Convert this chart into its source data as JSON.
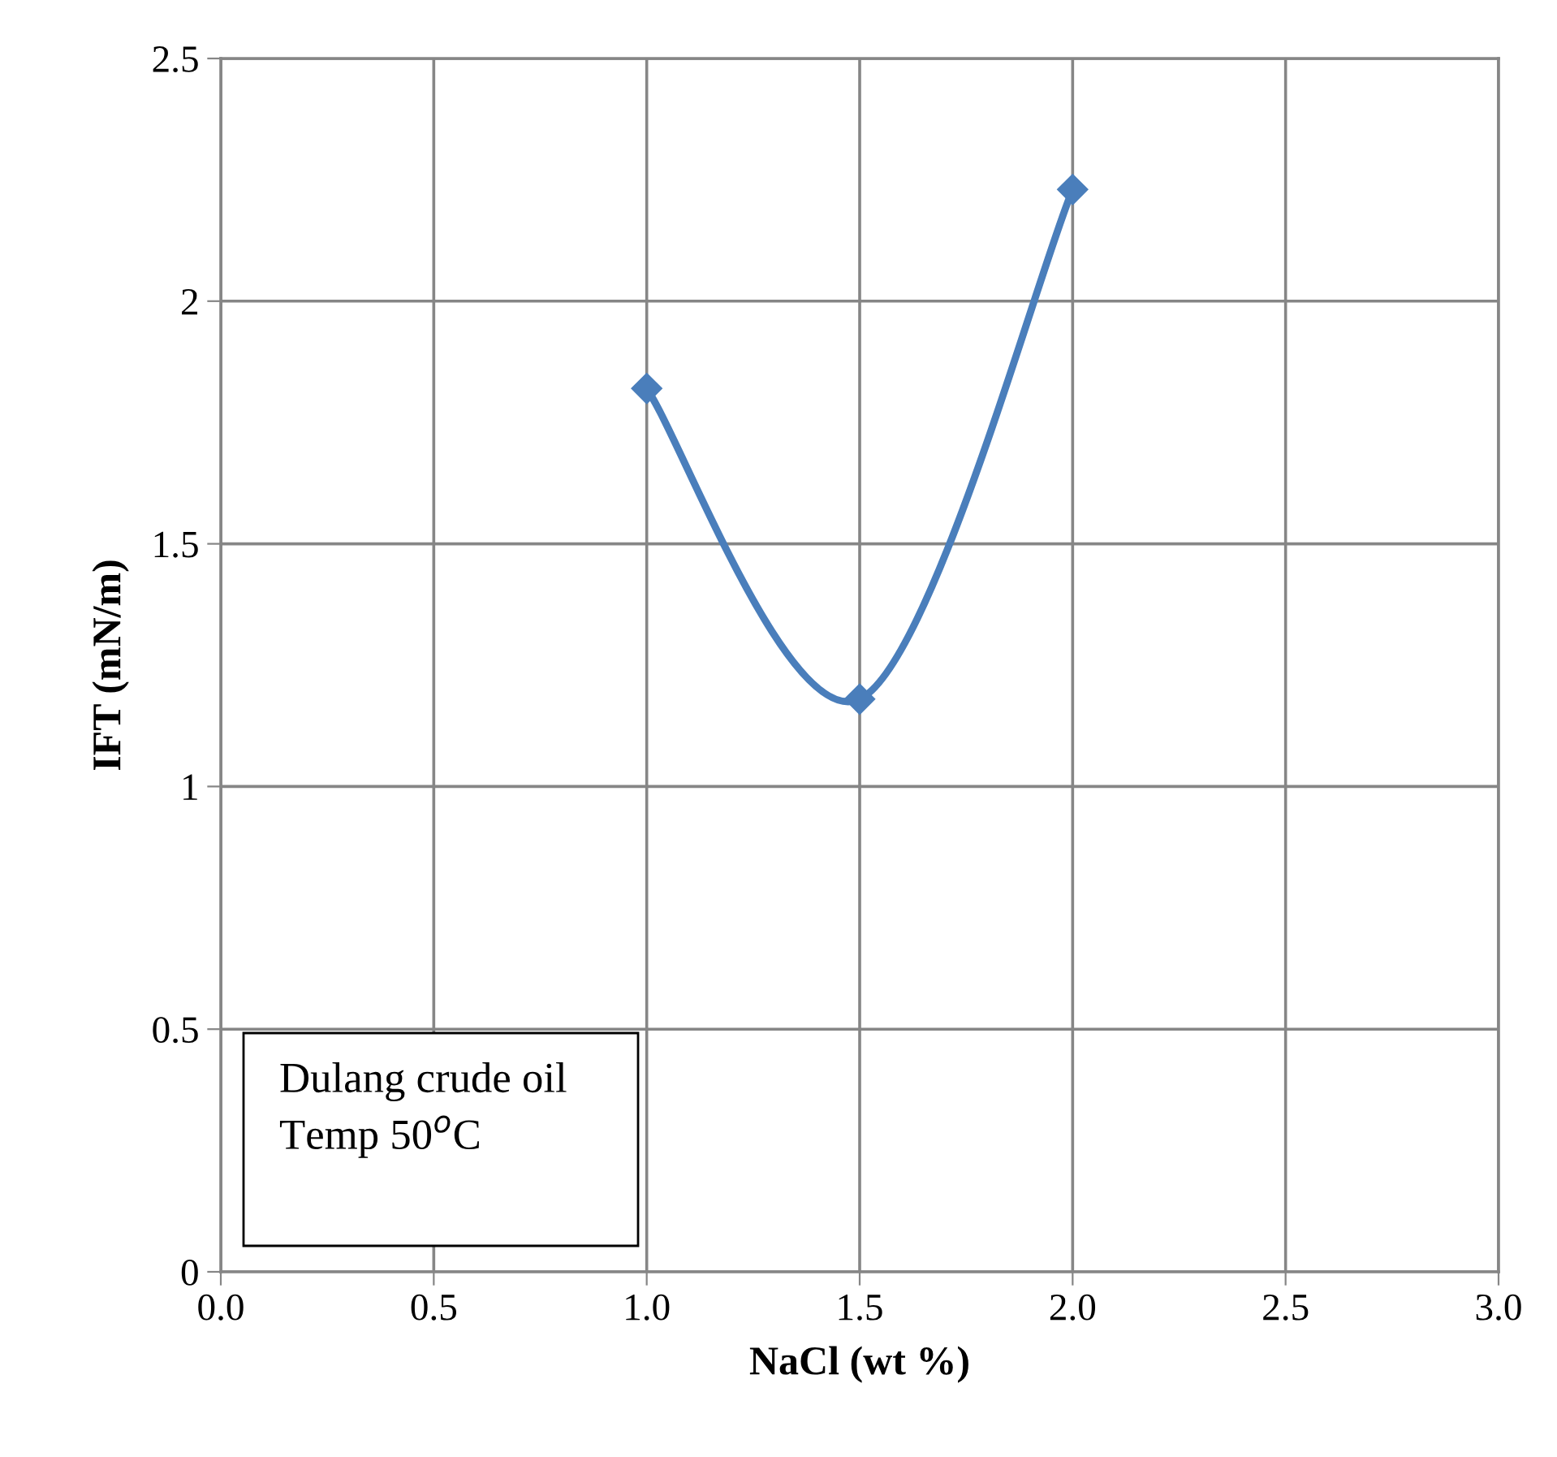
{
  "chart_data": {
    "type": "line",
    "xlabel": "NaCl (wt %)",
    "ylabel": "IFT (mN/m)",
    "x": [
      1.0,
      1.5,
      2.0
    ],
    "series": [
      {
        "color": "#4a7ebb",
        "values": [
          1.82,
          1.18,
          2.23
        ]
      }
    ],
    "xlim": [
      0,
      3
    ],
    "xticks": [
      {
        "value": 0,
        "label": "0.0"
      },
      {
        "value": 0.5,
        "label": "0.5"
      },
      {
        "value": 1,
        "label": "1.0"
      },
      {
        "value": 1.5,
        "label": "1.5"
      },
      {
        "value": 2,
        "label": "2.0"
      },
      {
        "value": 2.5,
        "label": "2.5"
      },
      {
        "value": 3,
        "label": "3.0"
      }
    ],
    "ylim": [
      0,
      2.5
    ],
    "yticks": [
      0,
      0.5,
      1,
      1.5,
      2,
      2.5
    ],
    "grid": true,
    "legend": false,
    "marker": "diamond",
    "line_style": "solid",
    "annotations": [
      "Dulang crude oil",
      "Temp 50$^{o}$C"
    ]
  }
}
